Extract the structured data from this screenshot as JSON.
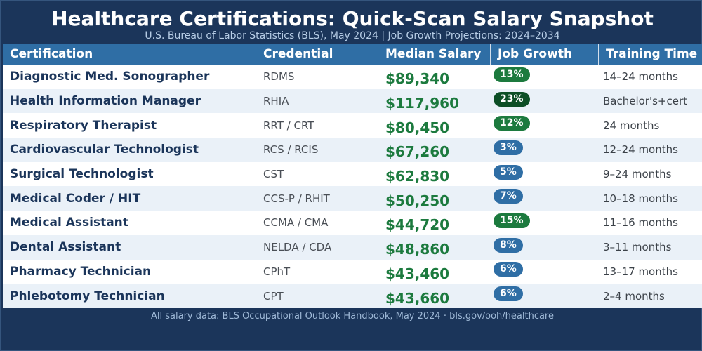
{
  "header": {
    "title": "Healthcare Certifications: Quick-Scan Salary Snapshot",
    "subtitle": "U.S. Bureau of Labor Statistics (BLS), May 2024  |  Job Growth Projections: 2024–2034"
  },
  "table": {
    "columns": [
      "Certification",
      "Credential",
      "Median Salary",
      "Job Growth",
      "Training Time"
    ],
    "rows": [
      {
        "certification": "Diagnostic Med. Sonographer",
        "credential": "RDMS",
        "salary": "$89,340",
        "growth": "13%",
        "growth_color": "#1c7a3e",
        "training": "14–24 months"
      },
      {
        "certification": "Health Information Manager",
        "credential": "RHIA",
        "salary": "$117,960",
        "growth": "23%",
        "growth_color": "#0d4f26",
        "training": "Bachelor's+cert"
      },
      {
        "certification": "Respiratory Therapist",
        "credential": "RRT / CRT",
        "salary": "$80,450",
        "growth": "12%",
        "growth_color": "#1c7a3e",
        "training": "24 months"
      },
      {
        "certification": "Cardiovascular Technologist",
        "credential": "RCS / RCIS",
        "salary": "$67,260",
        "growth": "3%",
        "growth_color": "#2f6ea5",
        "training": "12–24 months"
      },
      {
        "certification": "Surgical Technologist",
        "credential": "CST",
        "salary": "$62,830",
        "growth": "5%",
        "growth_color": "#2f6ea5",
        "training": "9–24 months"
      },
      {
        "certification": "Medical Coder / HIT",
        "credential": "CCS-P / RHIT",
        "salary": "$50,250",
        "growth": "7%",
        "growth_color": "#2f6ea5",
        "training": "10–18 months"
      },
      {
        "certification": "Medical Assistant",
        "credential": "CCMA / CMA",
        "salary": "$44,720",
        "growth": "15%",
        "growth_color": "#1c7a3e",
        "training": "11–16 months"
      },
      {
        "certification": "Dental Assistant",
        "credential": "NELDA / CDA",
        "salary": "$48,860",
        "growth": "8%",
        "growth_color": "#2f6ea5",
        "training": "3–11 months"
      },
      {
        "certification": "Pharmacy Technician",
        "credential": "CPhT",
        "salary": "$43,460",
        "growth": "6%",
        "growth_color": "#2f6ea5",
        "training": "13–17 months"
      },
      {
        "certification": "Phlebotomy Technician",
        "credential": "CPT",
        "salary": "$43,660",
        "growth": "6%",
        "growth_color": "#2f6ea5",
        "training": "2–4 months"
      }
    ]
  },
  "footer": {
    "text": "All salary data: BLS Occupational Outlook Handbook, May 2024  ·  bls.gov/ooh/healthcare"
  },
  "colors": {
    "background": "#1b355a",
    "header_row": "#2f6ea5",
    "salary_text": "#1c7a3e",
    "growth_high": "#1c7a3e",
    "growth_highest": "#0d4f26",
    "growth_moderate": "#2f6ea5"
  }
}
